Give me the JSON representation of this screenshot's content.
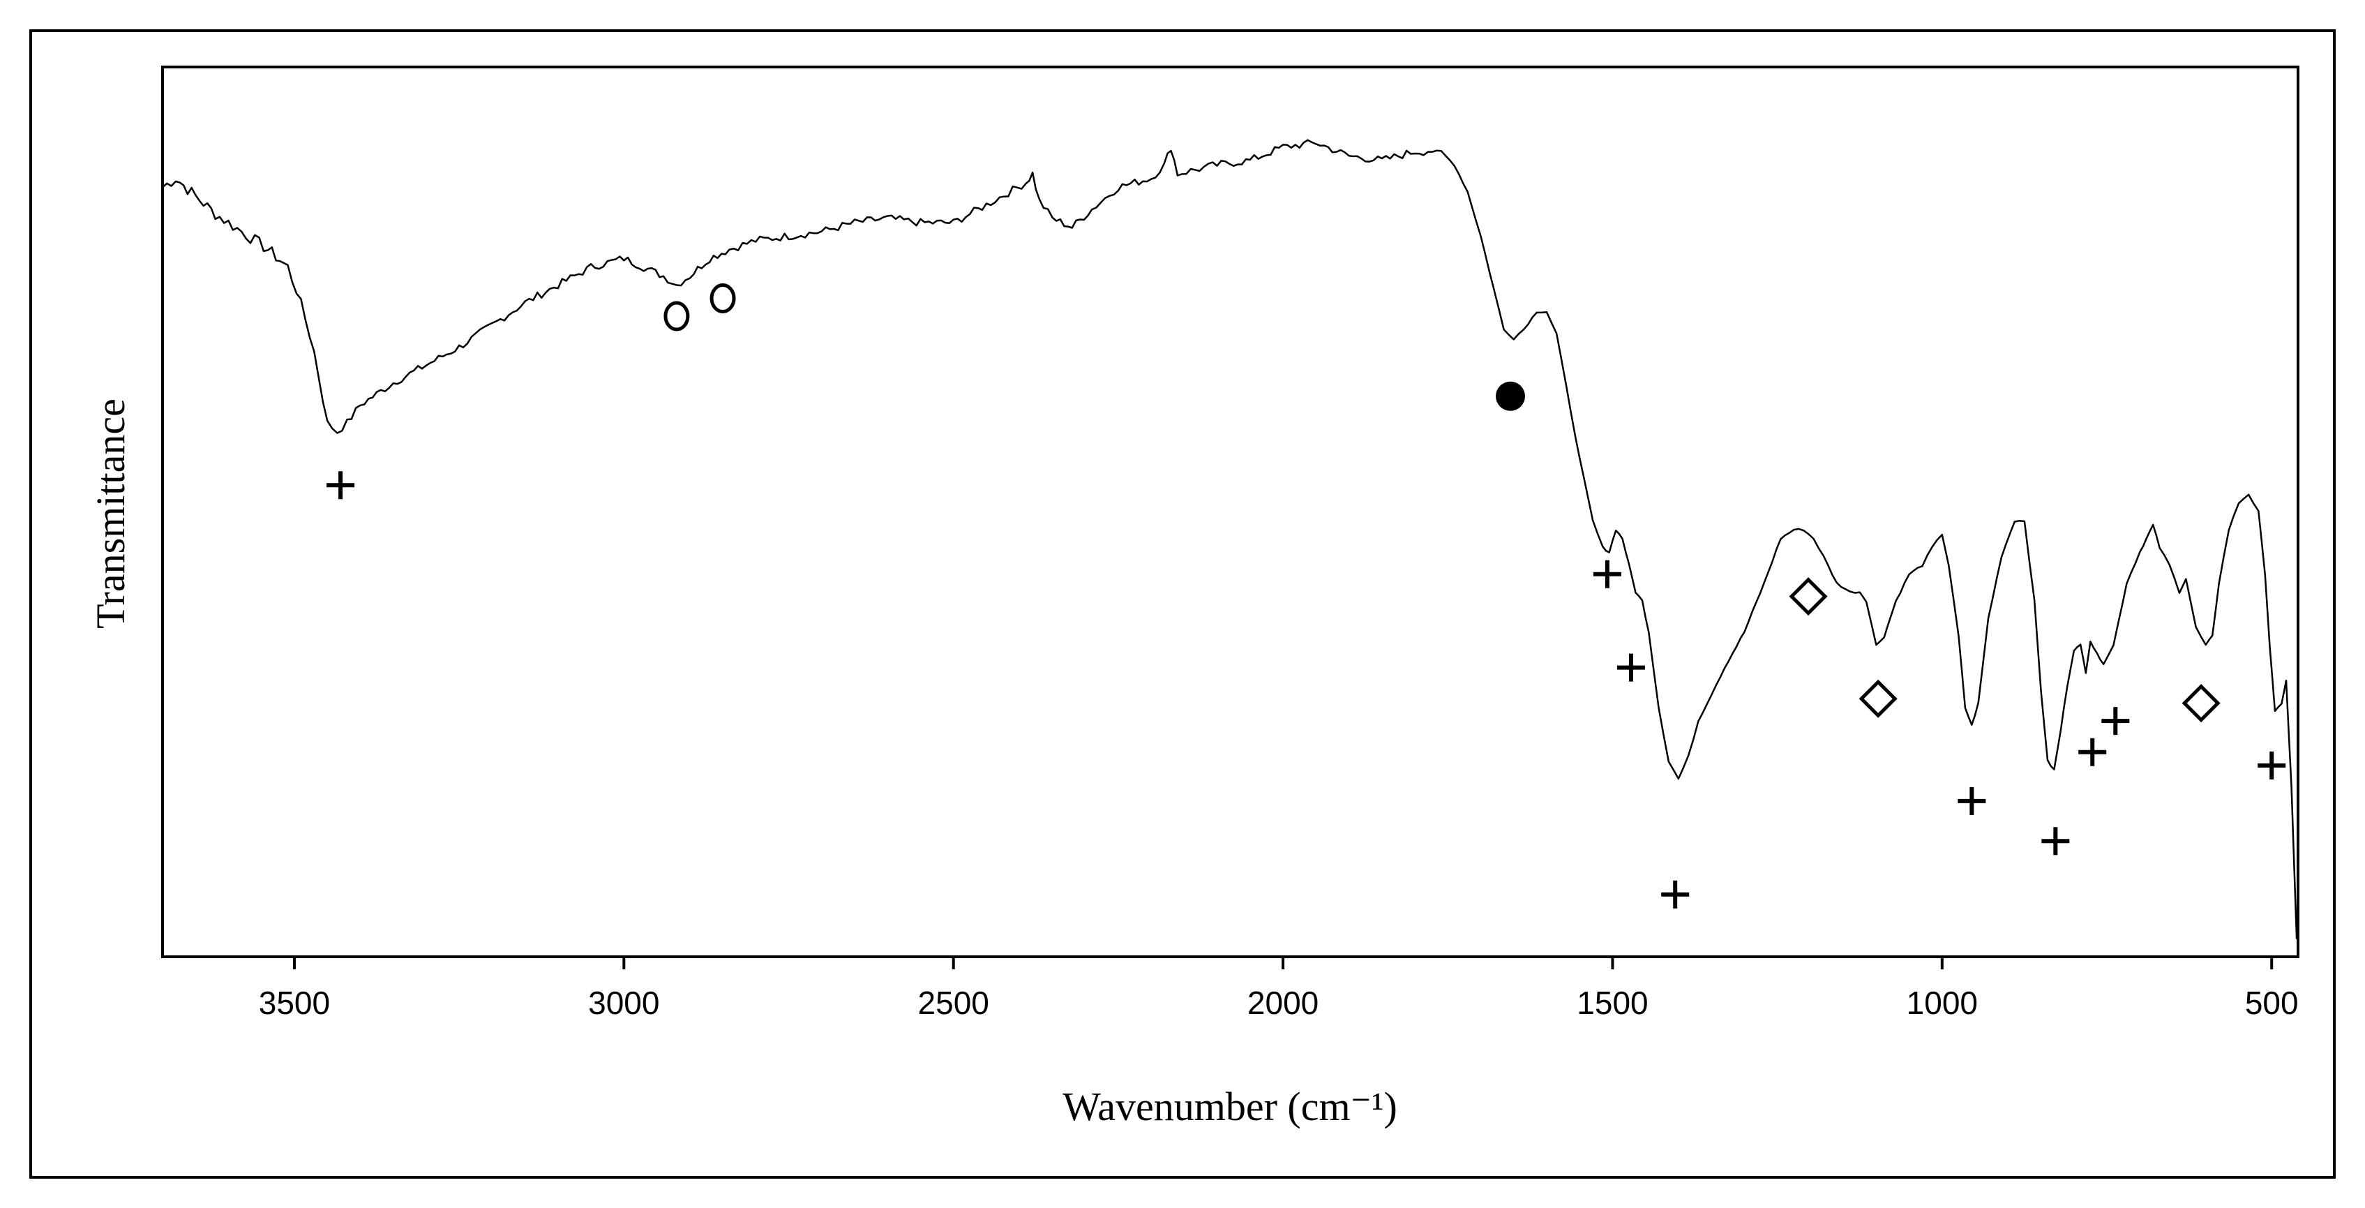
{
  "chart_data": {
    "type": "line",
    "title": "",
    "xlabel": "Wavenumber (cm⁻¹)",
    "ylabel": "Transmittance",
    "xlim": [
      3700,
      460
    ],
    "x_reversed": true,
    "ylim": [
      0,
      100
    ],
    "y_ticks_shown": false,
    "grid": false,
    "legend": "none",
    "x_ticks": [
      3500,
      3000,
      2500,
      2000,
      1500,
      1000,
      500
    ],
    "x_tick_labels": [
      "3500",
      "3000",
      "2500",
      "2000",
      "1500",
      "1000",
      "500"
    ],
    "series": [
      {
        "color": "#000000",
        "points": [
          [
            3700,
            86.5
          ],
          [
            3680,
            87.5
          ],
          [
            3650,
            85.5
          ],
          [
            3620,
            83.5
          ],
          [
            3580,
            81.5
          ],
          [
            3540,
            79.5
          ],
          [
            3510,
            77.5
          ],
          [
            3490,
            73.5
          ],
          [
            3470,
            68
          ],
          [
            3450,
            60
          ],
          [
            3435,
            59
          ],
          [
            3420,
            60
          ],
          [
            3400,
            62
          ],
          [
            3350,
            64.5
          ],
          [
            3300,
            66.5
          ],
          [
            3250,
            68.5
          ],
          [
            3200,
            71
          ],
          [
            3150,
            73.5
          ],
          [
            3100,
            75.5
          ],
          [
            3050,
            77.5
          ],
          [
            3000,
            78.5
          ],
          [
            2970,
            77.5
          ],
          [
            2940,
            76.5
          ],
          [
            2920,
            75.5
          ],
          [
            2900,
            76.5
          ],
          [
            2870,
            78.5
          ],
          [
            2840,
            79.5
          ],
          [
            2800,
            80.5
          ],
          [
            2750,
            81
          ],
          [
            2700,
            81.5
          ],
          [
            2650,
            82.5
          ],
          [
            2600,
            83
          ],
          [
            2550,
            82.5
          ],
          [
            2500,
            82.5
          ],
          [
            2450,
            84.5
          ],
          [
            2390,
            87
          ],
          [
            2380,
            88
          ],
          [
            2370,
            85
          ],
          [
            2350,
            83
          ],
          [
            2320,
            82
          ],
          [
            2290,
            84
          ],
          [
            2250,
            86.5
          ],
          [
            2200,
            87.5
          ],
          [
            2180,
            89
          ],
          [
            2170,
            91
          ],
          [
            2160,
            88
          ],
          [
            2100,
            89
          ],
          [
            2050,
            89.5
          ],
          [
            2000,
            91
          ],
          [
            1950,
            91.5
          ],
          [
            1900,
            90
          ],
          [
            1850,
            89.5
          ],
          [
            1800,
            90.5
          ],
          [
            1760,
            90.5
          ],
          [
            1740,
            89
          ],
          [
            1720,
            86
          ],
          [
            1700,
            81
          ],
          [
            1680,
            75
          ],
          [
            1665,
            70.5
          ],
          [
            1650,
            69.5
          ],
          [
            1635,
            70.5
          ],
          [
            1615,
            72.5
          ],
          [
            1600,
            72.5
          ],
          [
            1585,
            70
          ],
          [
            1570,
            64
          ],
          [
            1550,
            56
          ],
          [
            1530,
            49
          ],
          [
            1515,
            46
          ],
          [
            1505,
            45.5
          ],
          [
            1495,
            48
          ],
          [
            1485,
            47
          ],
          [
            1475,
            44
          ],
          [
            1465,
            41
          ],
          [
            1455,
            40
          ],
          [
            1445,
            36.5
          ],
          [
            1430,
            28
          ],
          [
            1415,
            22
          ],
          [
            1400,
            20
          ],
          [
            1385,
            22.5
          ],
          [
            1370,
            26.5
          ],
          [
            1350,
            29.5
          ],
          [
            1330,
            32.5
          ],
          [
            1300,
            36.5
          ],
          [
            1270,
            42
          ],
          [
            1245,
            47
          ],
          [
            1225,
            48
          ],
          [
            1210,
            48
          ],
          [
            1195,
            47
          ],
          [
            1180,
            45
          ],
          [
            1160,
            42
          ],
          [
            1140,
            41
          ],
          [
            1125,
            41
          ],
          [
            1115,
            40
          ],
          [
            1100,
            35
          ],
          [
            1088,
            36
          ],
          [
            1070,
            40
          ],
          [
            1050,
            43
          ],
          [
            1030,
            44
          ],
          [
            1015,
            46
          ],
          [
            1000,
            47.5
          ],
          [
            990,
            44
          ],
          [
            975,
            36
          ],
          [
            965,
            28
          ],
          [
            955,
            26
          ],
          [
            945,
            28.5
          ],
          [
            930,
            38
          ],
          [
            910,
            45
          ],
          [
            890,
            49
          ],
          [
            875,
            49
          ],
          [
            860,
            40
          ],
          [
            850,
            30
          ],
          [
            840,
            22
          ],
          [
            830,
            21
          ],
          [
            820,
            25.5
          ],
          [
            810,
            30.5
          ],
          [
            800,
            34.5
          ],
          [
            790,
            35
          ],
          [
            782,
            32
          ],
          [
            775,
            35.5
          ],
          [
            765,
            34
          ],
          [
            755,
            33
          ],
          [
            740,
            35
          ],
          [
            720,
            42
          ],
          [
            700,
            45.5
          ],
          [
            690,
            47
          ],
          [
            680,
            48.5
          ],
          [
            670,
            46
          ],
          [
            655,
            44
          ],
          [
            640,
            41
          ],
          [
            630,
            42.5
          ],
          [
            615,
            37
          ],
          [
            600,
            35
          ],
          [
            590,
            36
          ],
          [
            580,
            42
          ],
          [
            565,
            48
          ],
          [
            550,
            51
          ],
          [
            535,
            52
          ],
          [
            520,
            50
          ],
          [
            510,
            43
          ],
          [
            503,
            35
          ],
          [
            495,
            27.5
          ],
          [
            485,
            28.5
          ],
          [
            478,
            31
          ],
          [
            470,
            19
          ],
          [
            462,
            2
          ]
        ]
      }
    ],
    "markers": [
      {
        "symbol": "+",
        "x": 3430,
        "y": 53
      },
      {
        "symbol": "o",
        "x": 2920,
        "y": 72
      },
      {
        "symbol": "o",
        "x": 2850,
        "y": 74
      },
      {
        "symbol": "filled-circle",
        "x": 1655,
        "y": 63
      },
      {
        "symbol": "+",
        "x": 1508,
        "y": 43
      },
      {
        "symbol": "+",
        "x": 1472,
        "y": 32.5
      },
      {
        "symbol": "+",
        "x": 1405,
        "y": 7
      },
      {
        "symbol": "diamond",
        "x": 1203,
        "y": 40.5
      },
      {
        "symbol": "diamond",
        "x": 1097,
        "y": 29
      },
      {
        "symbol": "+",
        "x": 955,
        "y": 17.5
      },
      {
        "symbol": "+",
        "x": 828,
        "y": 13
      },
      {
        "symbol": "+",
        "x": 772,
        "y": 23
      },
      {
        "symbol": "+",
        "x": 737,
        "y": 26.5
      },
      {
        "symbol": "diamond",
        "x": 607,
        "y": 28.5
      },
      {
        "symbol": "+",
        "x": 500,
        "y": 21.5
      }
    ]
  }
}
